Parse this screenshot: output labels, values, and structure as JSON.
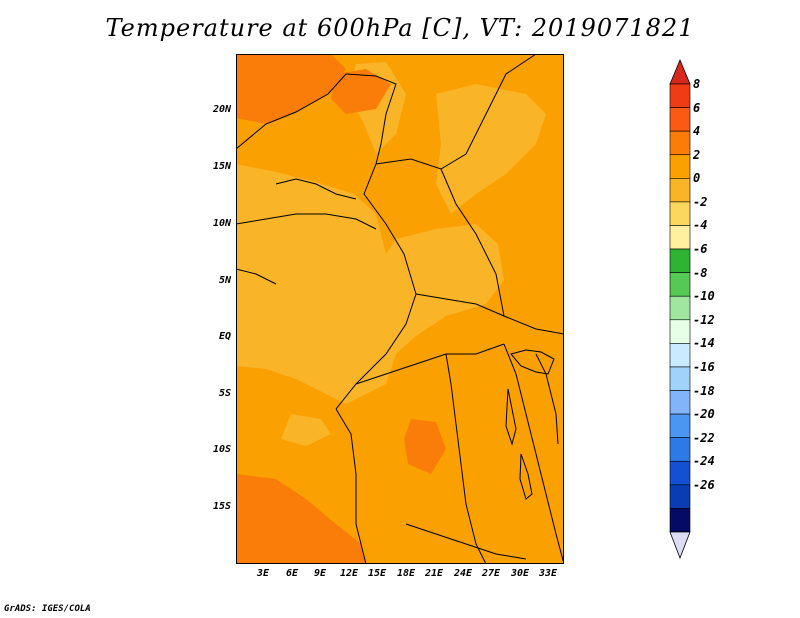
{
  "title": "Temperature at 600hPa [C], VT: 2019071821",
  "map": {
    "lat_labels": [
      "20N",
      "15N",
      "10N",
      "5N",
      "EQ",
      "5S",
      "10S",
      "15S"
    ],
    "lon_labels": [
      "3E",
      "6E",
      "9E",
      "12E",
      "15E",
      "18E",
      "21E",
      "24E",
      "27E",
      "30E",
      "33E"
    ]
  },
  "colorbar": {
    "labels": [
      "8",
      "6",
      "4",
      "2",
      "0",
      "-2",
      "-4",
      "-6",
      "-8",
      "-10",
      "-12",
      "-14",
      "-16",
      "-18",
      "-20",
      "-22",
      "-24",
      "-26"
    ],
    "colors": [
      "#f03c14",
      "#fa5a14",
      "#fa7d0a",
      "#faa000",
      "#fab428",
      "#fbd760",
      "#fff0a0",
      "#2eb432",
      "#55c855",
      "#a0e6a0",
      "#e6ffe6",
      "#c8ebff",
      "#a0d2fa",
      "#82b4fa",
      "#4b96f0",
      "#2d7ae6",
      "#1450d2",
      "#0a3cb4",
      "#050a64"
    ],
    "top_arrow_color": "#d8281e",
    "bottom_arrow_color": "#dcdcf5"
  },
  "credit": "GrADS: IGES/COLA"
}
